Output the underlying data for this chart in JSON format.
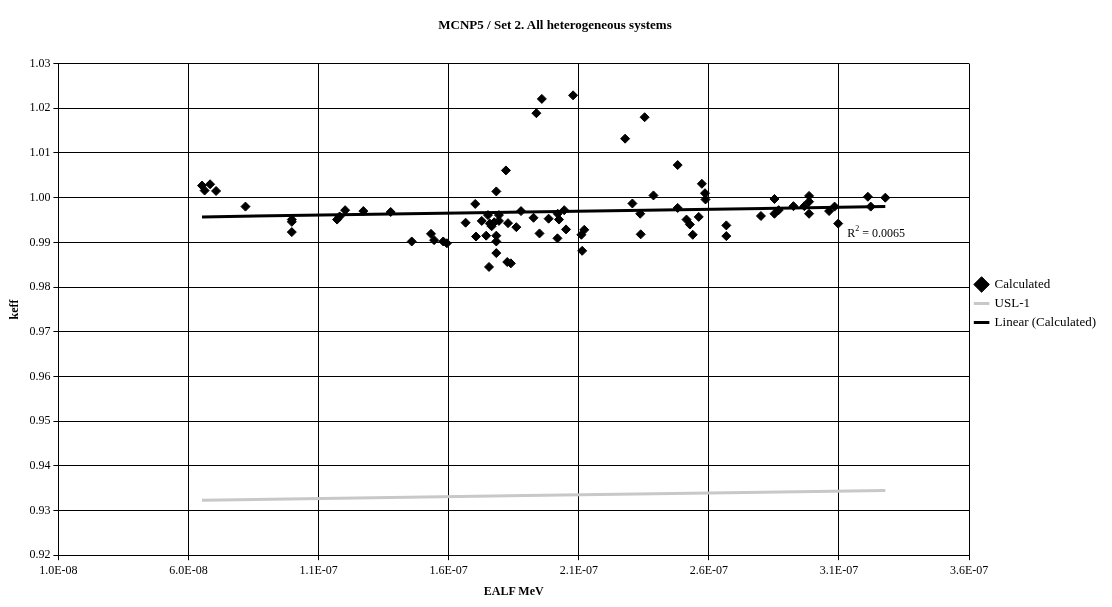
{
  "chart_data": {
    "type": "scatter",
    "title": "MCNP5 / Set 2. All heterogeneous systems",
    "xlabel": "EALF MeV",
    "ylabel": "keff",
    "xlim": [
      1e-08,
      3.6e-07
    ],
    "xticks": [
      {
        "value": 1e-08,
        "label": "1.0E-08"
      },
      {
        "value": 6e-08,
        "label": "6.0E-08"
      },
      {
        "value": 1.1e-07,
        "label": "1.1E-07"
      },
      {
        "value": 1.6e-07,
        "label": "1.6E-07"
      },
      {
        "value": 2.1e-07,
        "label": "2.1E-07"
      },
      {
        "value": 2.6e-07,
        "label": "2.6E-07"
      },
      {
        "value": 3.1e-07,
        "label": "3.1E-07"
      },
      {
        "value": 3.6e-07,
        "label": "3.6E-07"
      }
    ],
    "ylim": [
      0.92,
      1.03
    ],
    "yticks": [
      {
        "value": 0.92,
        "label": "0.92"
      },
      {
        "value": 0.93,
        "label": "0.93"
      },
      {
        "value": 0.94,
        "label": "0.94"
      },
      {
        "value": 0.95,
        "label": "0.95"
      },
      {
        "value": 0.96,
        "label": "0.96"
      },
      {
        "value": 0.97,
        "label": "0.97"
      },
      {
        "value": 0.98,
        "label": "0.98"
      },
      {
        "value": 0.99,
        "label": "0.99"
      },
      {
        "value": 1.0,
        "label": "1.00"
      },
      {
        "value": 1.01,
        "label": "1.01"
      },
      {
        "value": 1.02,
        "label": "1.02"
      },
      {
        "value": 1.03,
        "label": "1.03"
      }
    ],
    "grid": true,
    "legend": "right",
    "series": [
      {
        "name": "Calculated",
        "marker": "diamond",
        "color": "#000000",
        "x": [
          6.52e-08,
          6.62e-08,
          6.83e-08,
          7.06e-08,
          8.19e-08,
          9.97e-08,
          9.97e-08,
          9.97e-08,
          1.171e-07,
          1.181e-07,
          1.202e-07,
          1.272e-07,
          1.377e-07,
          1.458e-07,
          1.532e-07,
          1.544e-07,
          1.579e-07,
          1.593e-07,
          1.665e-07,
          1.702e-07,
          1.705e-07,
          1.727e-07,
          1.744e-07,
          1.751e-07,
          1.755e-07,
          1.758e-07,
          1.765e-07,
          1.775e-07,
          1.783e-07,
          1.783e-07,
          1.783e-07,
          1.783e-07,
          1.793e-07,
          1.793e-07,
          1.82e-07,
          1.825e-07,
          1.839e-07,
          1.828e-07,
          1.86e-07,
          1.878e-07,
          1.926e-07,
          1.937e-07,
          1.949e-07,
          1.958e-07,
          1.984e-07,
          2.019e-07,
          2.024e-07,
          2.018e-07,
          2.044e-07,
          2.051e-07,
          2.078e-07,
          2.11e-07,
          2.121e-07,
          2.113e-07,
          2.278e-07,
          2.306e-07,
          2.336e-07,
          2.338e-07,
          2.353e-07,
          2.387e-07,
          2.48e-07,
          2.48e-07,
          2.514e-07,
          2.527e-07,
          2.538e-07,
          2.561e-07,
          2.573e-07,
          2.585e-07,
          2.587e-07,
          2.667e-07,
          2.667e-07,
          2.8e-07,
          2.852e-07,
          2.852e-07,
          2.868e-07,
          2.925e-07,
          2.967e-07,
          2.985e-07,
          2.985e-07,
          2.985e-07,
          3.062e-07,
          3.083e-07,
          3.097e-07,
          3.211e-07,
          3.222e-07,
          3.278e-07
        ],
        "values": [
          1.0027,
          1.0016,
          1.003,
          1.0015,
          0.998,
          0.9951,
          0.9946,
          0.9923,
          0.9951,
          0.9958,
          0.9972,
          0.997,
          0.9968,
          0.9902,
          0.9919,
          0.9905,
          0.9902,
          0.9898,
          0.9944,
          0.9986,
          0.9913,
          0.9948,
          0.9915,
          0.9961,
          0.9845,
          0.9942,
          0.9936,
          0.9945,
          1.0014,
          0.9915,
          0.9902,
          0.9876,
          0.9961,
          0.9948,
          1.0061,
          0.9856,
          0.9853,
          0.9943,
          0.9934,
          0.997,
          0.9955,
          1.0189,
          0.992,
          1.0221,
          0.9953,
          0.9964,
          0.9951,
          0.9909,
          0.9972,
          0.9929,
          1.0229,
          0.9917,
          0.9928,
          0.9881,
          1.0132,
          0.9987,
          0.9964,
          0.9918,
          1.018,
          1.0005,
          1.0073,
          0.9977,
          0.9951,
          0.994,
          0.9917,
          0.9957,
          1.0031,
          1.001,
          0.9996,
          0.9938,
          0.9914,
          0.9959,
          0.9997,
          0.9964,
          0.9972,
          0.9981,
          0.9981,
          1.0004,
          0.9991,
          0.9964,
          0.997,
          0.998,
          0.9942,
          1.0002,
          0.998,
          1.0
        ]
      },
      {
        "name": "USL-1",
        "type": "line",
        "marker": "none",
        "color": "#c8c8c8",
        "x": [
          6.52e-08,
          3.278e-07
        ],
        "values": [
          0.9323,
          0.9345
        ]
      },
      {
        "name": "Linear (Calculated)",
        "type": "line",
        "marker": "none",
        "color": "#000000",
        "x": [
          6.52e-08,
          3.278e-07
        ],
        "values": [
          0.9957,
          0.998
        ]
      }
    ],
    "annotations": [
      "R$^{2}$ = 0.0065"
    ]
  }
}
